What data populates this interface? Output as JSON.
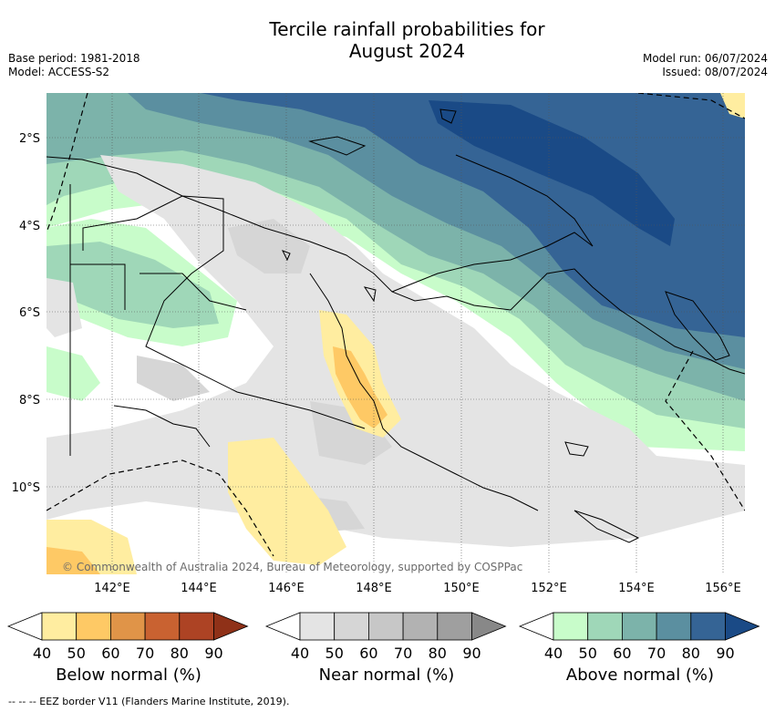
{
  "title": {
    "line1": "Tercile rainfall probabilities for",
    "line2": "August 2024"
  },
  "meta": {
    "base_period": "Base period: 1981-2018",
    "model": "Model: ACCESS-S2",
    "model_run": "Model run: 06/07/2024",
    "issued": "Issued: 08/07/2024"
  },
  "map": {
    "lat_labels": [
      "2°S",
      "4°S",
      "6°S",
      "8°S",
      "10°S"
    ],
    "lon_labels": [
      "142°E",
      "144°E",
      "146°E",
      "148°E",
      "150°E",
      "152°E",
      "154°E",
      "156°E"
    ],
    "copyright": "© Commonwealth of Australia 2024, Bureau of Meteorology, supported by COSPPac"
  },
  "colorbars": [
    {
      "name": "below",
      "label": "Below normal (%)",
      "ticks": [
        "40",
        "50",
        "60",
        "70",
        "80",
        "90"
      ],
      "colors": [
        "#ffeda0",
        "#fec965",
        "#e09448",
        "#c96231",
        "#ad4324",
        "#8f3118"
      ]
    },
    {
      "name": "near",
      "label": "Near normal (%)",
      "ticks": [
        "40",
        "50",
        "60",
        "70",
        "80",
        "90"
      ],
      "colors": [
        "#e4e4e4",
        "#d6d6d6",
        "#c7c7c7",
        "#b2b2b2",
        "#9f9f9f",
        "#888888"
      ]
    },
    {
      "name": "above",
      "label": "Above normal (%)",
      "ticks": [
        "40",
        "50",
        "60",
        "70",
        "80",
        "90"
      ],
      "colors": [
        "#c8fcca",
        "#9fd7b8",
        "#7cb3aa",
        "#5b8fa0",
        "#356495",
        "#1a4a86"
      ]
    }
  ],
  "footer": "--  --  -- EEZ border V11 (Flanders Marine Institute, 2019)."
}
